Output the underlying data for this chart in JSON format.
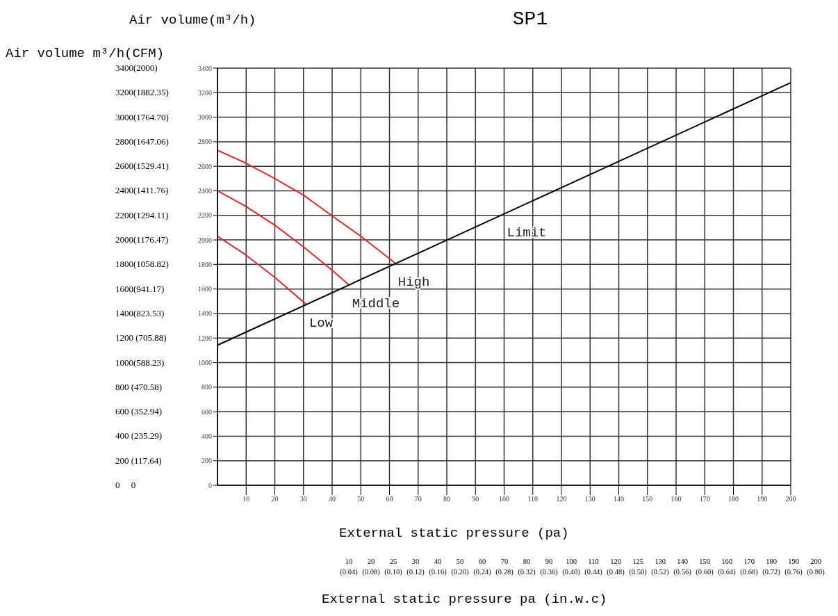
{
  "chart_data": {
    "type": "line",
    "title": "SP1",
    "xlabel": "External static pressure  (pa)",
    "ylabel": "Air volume(m³/h)",
    "xlim": [
      0,
      200
    ],
    "xticks": [
      10,
      20,
      30,
      40,
      50,
      60,
      70,
      80,
      90,
      100,
      110,
      120,
      130,
      140,
      150,
      160,
      170,
      180,
      190,
      200
    ],
    "ylim": [
      0,
      3400
    ],
    "yticks": [
      0,
      200,
      400,
      600,
      800,
      1000,
      1200,
      1400,
      1600,
      1800,
      2000,
      2200,
      2400,
      2600,
      2800,
      3000,
      3200,
      3400
    ],
    "grid": true,
    "legend": false,
    "marker": "none",
    "line_style": "solid",
    "series": [
      {
        "name": "High",
        "color": "#e8262b",
        "x": [
          0,
          10,
          20,
          30,
          40,
          50,
          62
        ],
        "values": [
          2730,
          2625,
          2500,
          2365,
          2196,
          2030,
          1810
        ]
      },
      {
        "name": "Middle",
        "color": "#e8262b",
        "x": [
          0,
          10,
          20,
          30,
          40,
          46
        ],
        "values": [
          2400,
          2272,
          2120,
          1944,
          1752,
          1630
        ]
      },
      {
        "name": "Low",
        "color": "#e8262b",
        "x": [
          0,
          10,
          20,
          31
        ],
        "values": [
          2030,
          1876,
          1694,
          1474
        ]
      },
      {
        "name": "Limit",
        "color": "#000000",
        "x": [
          0,
          100,
          200
        ],
        "values": [
          1142,
          2212,
          3282
        ]
      }
    ],
    "annotations": [
      "Air volume m³/h(CFM)",
      "3400(2000)",
      "3200(1882.35)",
      "3000(1764.70)",
      "2800(1647.06)",
      "2600(1529.41)",
      "2400(1411.76)",
      "2200(1294.11)",
      "2000(1176.47)",
      "1800(1058.82)",
      "1600(941.17)",
      "1400(823.53)",
      "1200 (705.88)",
      "1000(588.23)",
      "800 (470.58)",
      "600 (352.94)",
      "400 (235.29)",
      "200 (117.64)",
      "0     0",
      "10 (0.04)",
      "20 (0.08)",
      "25 (0.10)",
      "30 (0.12)",
      "40 (0.16)",
      "50 (0.20)",
      "60 (0.24)",
      "70 (0.28)",
      "80 (0.32)",
      "90 (0.36)",
      "100 (0.40)",
      "110 (0.44)",
      "120 (0.48)",
      "125 (0.50)",
      "130 (0.52)",
      "140 (0.56)",
      "150 (0.60)",
      "160 (0.64)",
      "170 (0.68)",
      "180 (0.72)",
      "190 (0.76)",
      "200 (0.80)",
      "External static pressure pa (in.w.c)"
    ]
  }
}
